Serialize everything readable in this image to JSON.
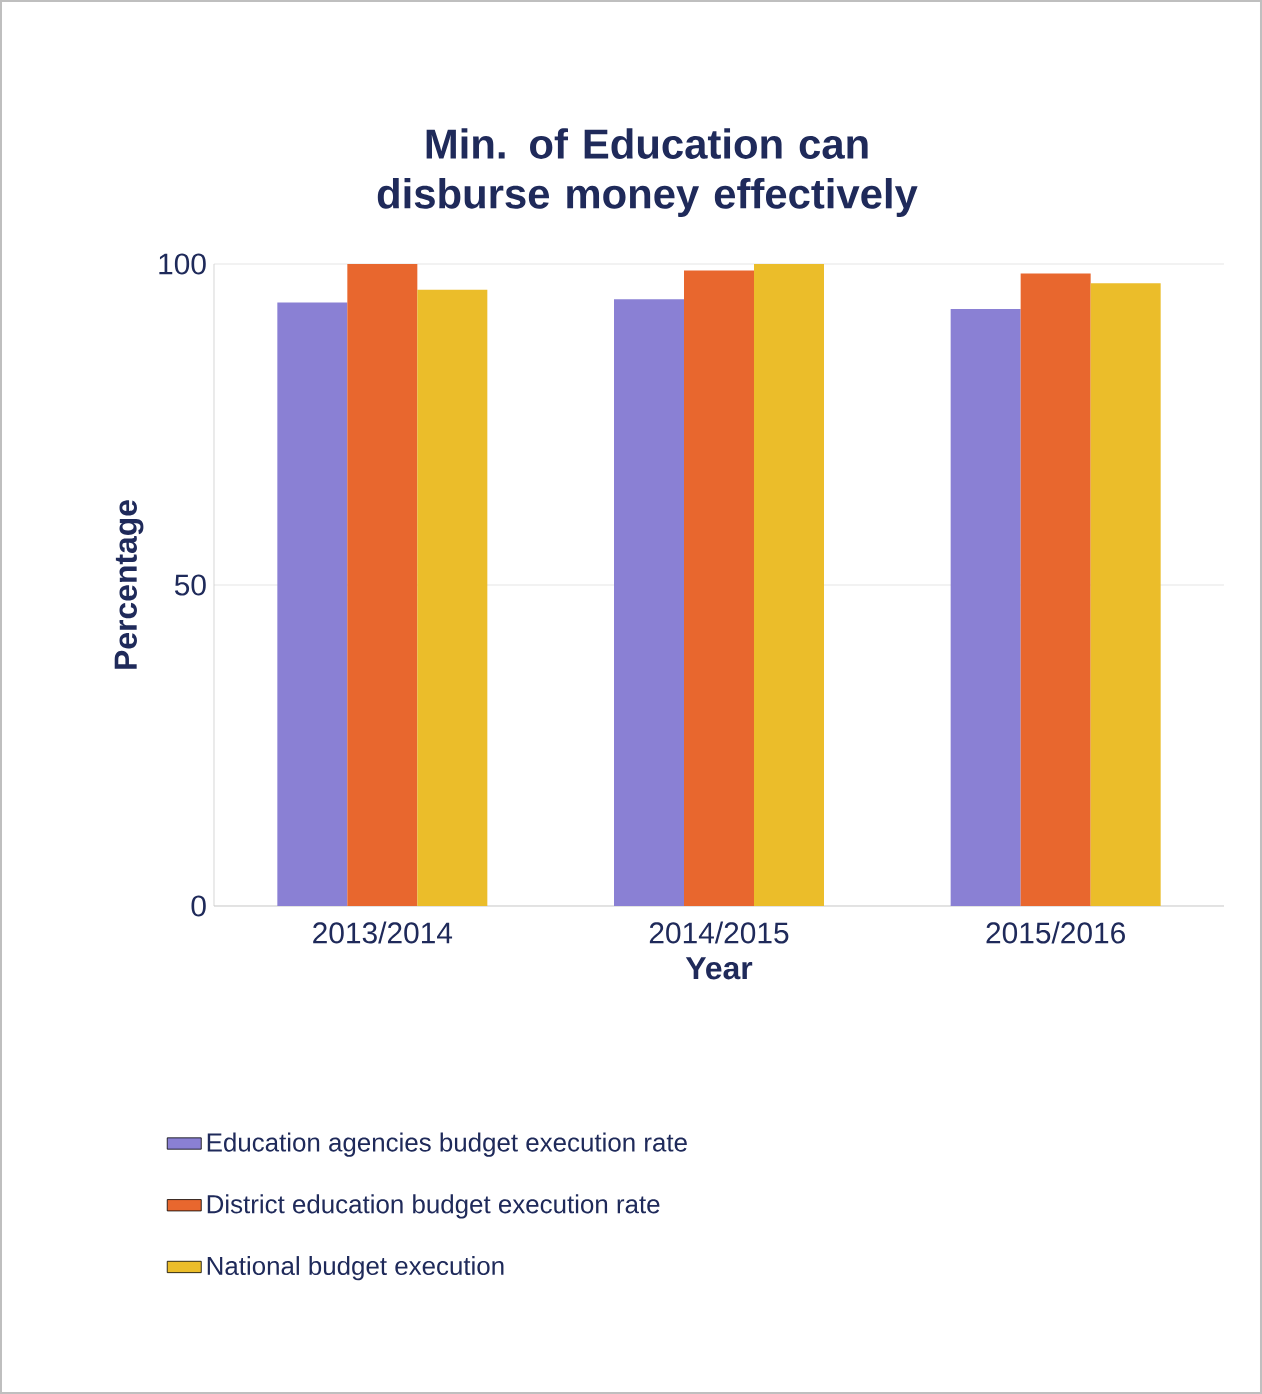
{
  "chart_data": {
    "type": "bar",
    "title": "Min. of Education can disburse money effectively",
    "xlabel": "Year",
    "ylabel": "Percentage",
    "categories": [
      "2013/2014",
      "2014/2015",
      "2015/2016"
    ],
    "series": [
      {
        "name": "Education agencies budget execution rate",
        "color": "#8a80d4",
        "values": [
          94,
          94.5,
          93
        ]
      },
      {
        "name": "District education budget execution rate",
        "color": "#e8672e",
        "values": [
          100,
          99,
          98.5
        ]
      },
      {
        "name": "National budget execution",
        "color": "#ebbd2a",
        "values": [
          96,
          100,
          97
        ]
      }
    ],
    "ylim": [
      0,
      100
    ],
    "yticks": [
      0,
      50,
      100
    ],
    "grid": "y",
    "legend": "bottom"
  }
}
